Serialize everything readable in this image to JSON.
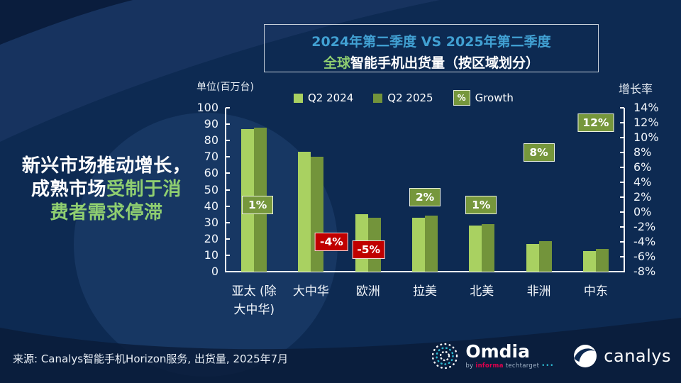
{
  "title_box": {
    "line1": "2024年第二季度 VS 2025年第二季度",
    "line2_highlight": "全球",
    "line2_rest": "智能手机出货量（按区域划分）"
  },
  "headline": {
    "line1": "新兴市场推动增长，",
    "line2_white": "成熟市场",
    "line2_green": "受制于消",
    "line3_green": "费者需求停滞"
  },
  "legend": {
    "q2_2024": "Q2 2024",
    "q2_2025": "Q2 2025",
    "growth_badge": "%",
    "growth": "Growth"
  },
  "footer": {
    "source": "来源: Canalys智能手机Horizon服务, 出货量, 2025年7月"
  },
  "logos": {
    "omdia_name": "Omdia",
    "omdia_by": "by",
    "omdia_informa": "informa",
    "omdia_techtarget": "techtarget",
    "omdia_dots": "•••",
    "canalys_name": "canalys"
  },
  "colors": {
    "background": "#0D2A52",
    "bar_2024": "#A9D161",
    "bar_2025": "#73943B",
    "growth_positive_bg": "#76973C",
    "growth_negative_bg": "#C00000",
    "title_blue": "#41A0D2",
    "accent_green": "#8FCE70"
  },
  "chart_data": {
    "type": "bar",
    "title": "2024年第二季度 VS 2025年第二季度 全球智能手机出货量（按区域划分）",
    "categories": [
      "亚太 (除大中华)",
      "大中华",
      "欧洲",
      "拉美",
      "北美",
      "非洲",
      "中东"
    ],
    "category_lines": [
      [
        "亚太 (除",
        "大中华)"
      ],
      [
        "大中华"
      ],
      [
        "欧洲"
      ],
      [
        "拉美"
      ],
      [
        "北美"
      ],
      [
        "非洲"
      ],
      [
        "中东"
      ]
    ],
    "series": [
      {
        "name": "Q2 2024",
        "color": "#A9D161",
        "values": [
          87,
          73,
          35,
          33,
          28,
          17,
          12.5
        ]
      },
      {
        "name": "Q2 2025",
        "color": "#73943B",
        "values": [
          88,
          70,
          33,
          34,
          29,
          18.5,
          14
        ]
      }
    ],
    "growth_series": {
      "name": "Growth",
      "values": [
        1,
        -4,
        -5,
        2,
        1,
        8,
        12
      ],
      "labels": [
        "1%",
        "-4%",
        "-5%",
        "2%",
        "1%",
        "8%",
        "12%"
      ],
      "label_dx": [
        5,
        29,
        1,
        0,
        -1,
        0,
        0
      ]
    },
    "left_axis": {
      "title": "单位(百万台)",
      "min": 0,
      "max": 100,
      "step": 10,
      "ticks": [
        "100",
        "90",
        "80",
        "70",
        "60",
        "50",
        "40",
        "30",
        "20",
        "10",
        "0"
      ]
    },
    "right_axis": {
      "title": "增长率",
      "min": -8,
      "max": 14,
      "step": 2,
      "ticks": [
        "14%",
        "12%",
        "10%",
        "8%",
        "6%",
        "4%",
        "2%",
        "0%",
        "-2%",
        "-4%",
        "-6%",
        "-8%"
      ]
    },
    "legend_position": "top",
    "grid": false
  }
}
